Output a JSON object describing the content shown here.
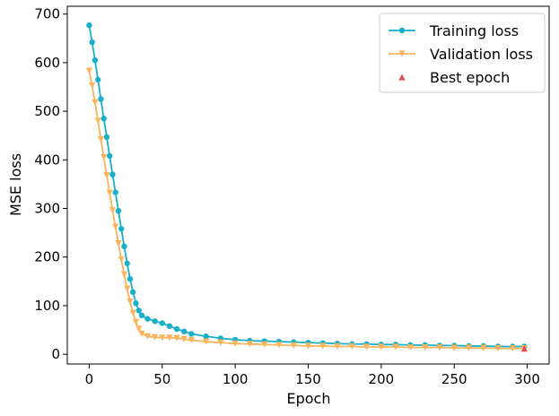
{
  "chart_data": {
    "type": "line",
    "title": "",
    "xlabel": "Epoch",
    "ylabel": "MSE loss",
    "xlim": [
      -15,
      315
    ],
    "ylim": [
      -20,
      716
    ],
    "xticks": [
      0,
      50,
      100,
      150,
      200,
      250,
      300
    ],
    "yticks": [
      0,
      100,
      200,
      300,
      400,
      500,
      600,
      700
    ],
    "grid": false,
    "legend_position": "top-right",
    "series": [
      {
        "name": "Training loss",
        "color": "#17b0c8",
        "marker": "circle",
        "points": [
          [
            0,
            677
          ],
          [
            2,
            642
          ],
          [
            4,
            605
          ],
          [
            6,
            565
          ],
          [
            8,
            525
          ],
          [
            10,
            485
          ],
          [
            12,
            447
          ],
          [
            14,
            408
          ],
          [
            16,
            370
          ],
          [
            18,
            333
          ],
          [
            20,
            295
          ],
          [
            22,
            258
          ],
          [
            24,
            222
          ],
          [
            26,
            187
          ],
          [
            28,
            155
          ],
          [
            30,
            128
          ],
          [
            32,
            105
          ],
          [
            34,
            90
          ],
          [
            36,
            80
          ],
          [
            40,
            73
          ],
          [
            45,
            68
          ],
          [
            50,
            64
          ],
          [
            55,
            58
          ],
          [
            60,
            52
          ],
          [
            65,
            47
          ],
          [
            70,
            42
          ],
          [
            80,
            37
          ],
          [
            90,
            33
          ],
          [
            100,
            30
          ],
          [
            110,
            28
          ],
          [
            120,
            27
          ],
          [
            130,
            26
          ],
          [
            140,
            25
          ],
          [
            150,
            24
          ],
          [
            160,
            23
          ],
          [
            170,
            22
          ],
          [
            180,
            21
          ],
          [
            190,
            21
          ],
          [
            200,
            20
          ],
          [
            210,
            20
          ],
          [
            220,
            19
          ],
          [
            230,
            19
          ],
          [
            240,
            18
          ],
          [
            250,
            18
          ],
          [
            260,
            17
          ],
          [
            270,
            17
          ],
          [
            280,
            16
          ],
          [
            290,
            16
          ],
          [
            298,
            16
          ]
        ]
      },
      {
        "name": "Validation loss",
        "color": "#f9b45c",
        "marker": "triangle-down",
        "points": [
          [
            0,
            583
          ],
          [
            2,
            553
          ],
          [
            4,
            518
          ],
          [
            6,
            480
          ],
          [
            8,
            442
          ],
          [
            10,
            405
          ],
          [
            12,
            368
          ],
          [
            14,
            332
          ],
          [
            16,
            296
          ],
          [
            18,
            262
          ],
          [
            20,
            228
          ],
          [
            22,
            195
          ],
          [
            24,
            164
          ],
          [
            26,
            135
          ],
          [
            28,
            108
          ],
          [
            30,
            85
          ],
          [
            32,
            66
          ],
          [
            34,
            52
          ],
          [
            36,
            42
          ],
          [
            40,
            37
          ],
          [
            45,
            35
          ],
          [
            50,
            34
          ],
          [
            55,
            34
          ],
          [
            60,
            33
          ],
          [
            65,
            31
          ],
          [
            70,
            29
          ],
          [
            80,
            26
          ],
          [
            90,
            24
          ],
          [
            100,
            22
          ],
          [
            110,
            21
          ],
          [
            120,
            20
          ],
          [
            130,
            19
          ],
          [
            140,
            18
          ],
          [
            150,
            17
          ],
          [
            160,
            17
          ],
          [
            170,
            16
          ],
          [
            180,
            16
          ],
          [
            190,
            15
          ],
          [
            200,
            15
          ],
          [
            210,
            15
          ],
          [
            220,
            14
          ],
          [
            230,
            14
          ],
          [
            240,
            14
          ],
          [
            250,
            13
          ],
          [
            260,
            13
          ],
          [
            270,
            13
          ],
          [
            280,
            12
          ],
          [
            290,
            12
          ],
          [
            298,
            12
          ]
        ]
      },
      {
        "name": "Best epoch",
        "color": "#e8494c",
        "marker": "triangle-up",
        "points": [
          [
            298,
            12
          ]
        ]
      }
    ]
  }
}
